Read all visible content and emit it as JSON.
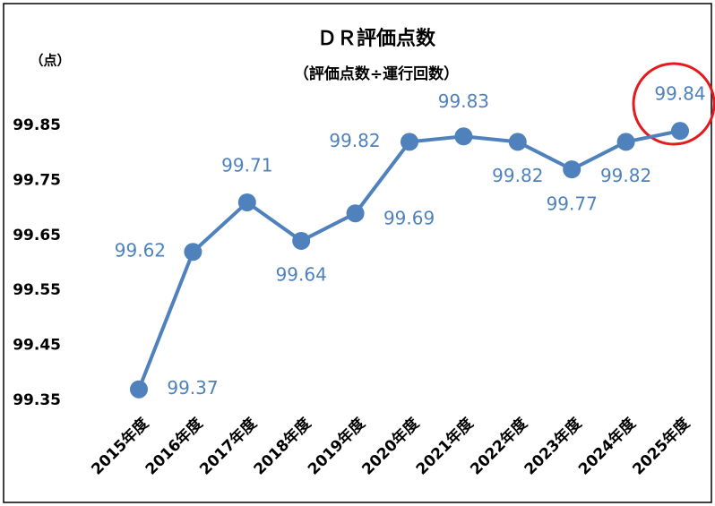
{
  "chart_data": {
    "type": "line",
    "title": "ＤＲ評価点数",
    "subtitle": "（評価点数÷運行回数）",
    "y_label": "（点）",
    "categories": [
      "2015年度",
      "2016年度",
      "2017年度",
      "2018年度",
      "2019年度",
      "2020年度",
      "2021年度",
      "2022年度",
      "2023年度",
      "2024年度",
      "2025年度"
    ],
    "series": [
      {
        "name": "ＤＲ評価点数",
        "color": "#4f81bd",
        "values": [
          99.37,
          99.62,
          99.71,
          99.64,
          99.69,
          99.82,
          99.83,
          99.82,
          99.77,
          99.82,
          99.84
        ]
      }
    ],
    "ylim": [
      99.35,
      99.85
    ],
    "yticks": [
      99.35,
      99.45,
      99.55,
      99.65,
      99.75,
      99.85
    ],
    "grid": false
  }
}
